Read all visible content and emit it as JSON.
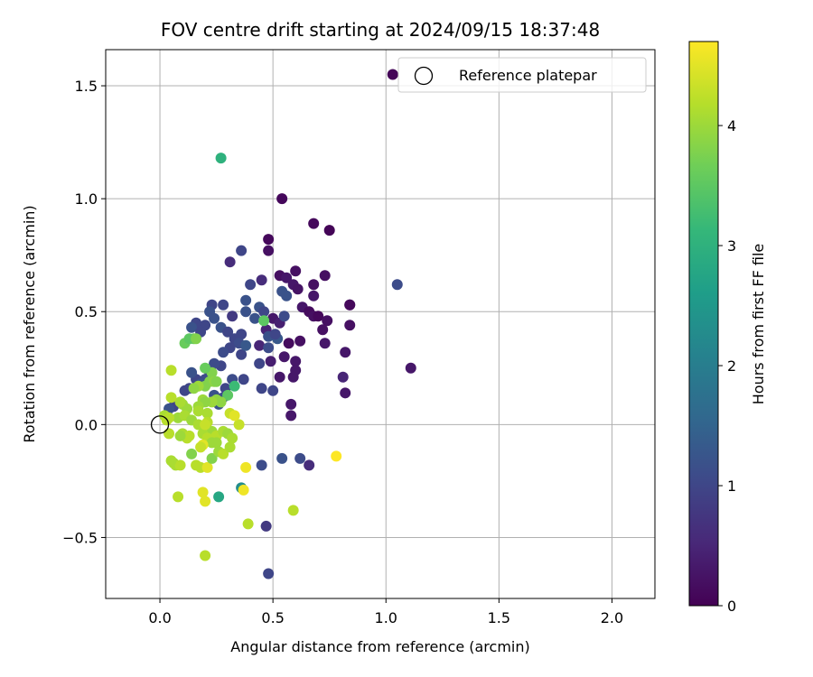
{
  "chart_data": {
    "type": "scatter",
    "title": "FOV centre drift starting at 2024/09/15 18:37:48",
    "xlabel": "Angular distance from reference (arcmin)",
    "ylabel": "Rotation from reference (arcmin)",
    "xlim": [
      -0.24,
      2.19
    ],
    "ylim": [
      -0.77,
      1.66
    ],
    "xticks": [
      0.0,
      0.5,
      1.0,
      1.5,
      2.0
    ],
    "xtick_labels": [
      "0.0",
      "0.5",
      "1.0",
      "1.5",
      "2.0"
    ],
    "yticks": [
      -0.5,
      0.0,
      0.5,
      1.0,
      1.5
    ],
    "ytick_labels": [
      "−0.5",
      "0.0",
      "0.5",
      "1.0",
      "1.5"
    ],
    "grid": true,
    "legend": {
      "position": "top-right",
      "entries": [
        {
          "label": "Reference platepar",
          "marker": "open-circle"
        }
      ]
    },
    "reference_point": {
      "x": 0.0,
      "y": 0.0
    },
    "colorbar": {
      "label": "Hours from first FF file",
      "colormap": "viridis",
      "range": [
        0,
        4.7
      ],
      "ticks": [
        0,
        1,
        2,
        3,
        4
      ],
      "tick_labels": [
        "0",
        "1",
        "2",
        "3",
        "4"
      ]
    },
    "series": [
      {
        "points": [
          [
            1.03,
            1.55,
            0.05
          ],
          [
            0.54,
            1.0,
            0.1
          ],
          [
            0.68,
            0.89,
            0.1
          ],
          [
            0.75,
            0.86,
            0.05
          ],
          [
            0.48,
            0.82,
            0.1
          ],
          [
            0.48,
            0.77,
            0.2
          ],
          [
            0.53,
            0.66,
            0.2
          ],
          [
            0.6,
            0.68,
            0.2
          ],
          [
            0.56,
            0.65,
            0.3
          ],
          [
            0.59,
            0.62,
            0.3
          ],
          [
            0.61,
            0.6,
            0.25
          ],
          [
            0.68,
            0.62,
            0.2
          ],
          [
            0.68,
            0.57,
            0.3
          ],
          [
            0.73,
            0.66,
            0.2
          ],
          [
            0.63,
            0.52,
            0.3
          ],
          [
            0.66,
            0.5,
            0.15
          ],
          [
            0.68,
            0.48,
            0.2
          ],
          [
            0.7,
            0.48,
            0.1
          ],
          [
            0.74,
            0.46,
            0.2
          ],
          [
            0.72,
            0.42,
            0.2
          ],
          [
            0.84,
            0.53,
            0.2
          ],
          [
            0.84,
            0.53,
            0.1
          ],
          [
            0.84,
            0.44,
            0.2
          ],
          [
            0.62,
            0.37,
            0.2
          ],
          [
            0.57,
            0.36,
            0.15
          ],
          [
            0.73,
            0.36,
            0.3
          ],
          [
            0.55,
            0.3,
            0.3
          ],
          [
            0.6,
            0.28,
            0.3
          ],
          [
            0.6,
            0.24,
            0.3
          ],
          [
            0.53,
            0.21,
            0.3
          ],
          [
            0.59,
            0.21,
            0.3
          ],
          [
            0.82,
            0.32,
            0.3
          ],
          [
            0.81,
            0.21,
            0.5
          ],
          [
            0.82,
            0.14,
            0.3
          ],
          [
            0.58,
            0.09,
            0.3
          ],
          [
            0.58,
            0.04,
            0.3
          ],
          [
            0.49,
            0.28,
            0.4
          ],
          [
            1.11,
            0.25,
            0.3
          ],
          [
            0.5,
            0.47,
            0.3
          ],
          [
            0.53,
            0.45,
            0.4
          ],
          [
            0.47,
            0.42,
            0.5
          ],
          [
            0.44,
            0.35,
            0.5
          ],
          [
            0.45,
            0.64,
            0.6
          ],
          [
            0.36,
            0.77,
            1.0
          ],
          [
            0.31,
            0.72,
            0.6
          ],
          [
            0.4,
            0.62,
            1.0
          ],
          [
            0.54,
            0.59,
            1.2
          ],
          [
            0.56,
            0.57,
            1.2
          ],
          [
            1.05,
            0.62,
            1.1
          ],
          [
            0.55,
            0.48,
            1.1
          ],
          [
            0.48,
            0.39,
            1.2
          ],
          [
            0.48,
            0.34,
            1.1
          ],
          [
            0.52,
            0.38,
            1.3
          ],
          [
            0.51,
            0.4,
            1.0
          ],
          [
            0.44,
            0.52,
            1.2
          ],
          [
            0.46,
            0.5,
            1.0
          ],
          [
            0.38,
            0.55,
            1.2
          ],
          [
            0.38,
            0.5,
            1.2
          ],
          [
            0.42,
            0.47,
            1.2
          ],
          [
            0.36,
            0.4,
            1.0
          ],
          [
            0.32,
            0.48,
            0.8
          ],
          [
            0.28,
            0.53,
            1.0
          ],
          [
            0.23,
            0.53,
            1.0
          ],
          [
            0.22,
            0.5,
            1.2
          ],
          [
            0.24,
            0.47,
            1.2
          ],
          [
            0.27,
            0.43,
            1.2
          ],
          [
            0.2,
            0.44,
            1.0
          ],
          [
            0.16,
            0.45,
            1.0
          ],
          [
            0.14,
            0.43,
            1.2
          ],
          [
            0.18,
            0.41,
            1.0
          ],
          [
            0.3,
            0.41,
            1.0
          ],
          [
            0.33,
            0.38,
            1.0
          ],
          [
            0.35,
            0.36,
            1.1
          ],
          [
            0.31,
            0.34,
            1.0
          ],
          [
            0.28,
            0.32,
            1.1
          ],
          [
            0.36,
            0.31,
            1.0
          ],
          [
            0.38,
            0.35,
            1.3
          ],
          [
            0.44,
            0.27,
            1.0
          ],
          [
            0.5,
            0.15,
            1.0
          ],
          [
            0.45,
            0.16,
            1.0
          ],
          [
            0.37,
            0.2,
            1.0
          ],
          [
            0.32,
            0.2,
            1.1
          ],
          [
            0.29,
            0.16,
            1.0
          ],
          [
            0.27,
            0.26,
            1.0
          ],
          [
            0.24,
            0.27,
            1.1
          ],
          [
            0.22,
            0.23,
            1.0
          ],
          [
            0.2,
            0.2,
            1.1
          ],
          [
            0.16,
            0.2,
            1.0
          ],
          [
            0.14,
            0.23,
            1.2
          ],
          [
            0.18,
            0.18,
            1.2
          ],
          [
            0.13,
            0.16,
            1.0
          ],
          [
            0.11,
            0.15,
            1.0
          ],
          [
            0.24,
            0.13,
            1.2
          ],
          [
            0.28,
            0.12,
            1.1
          ],
          [
            0.26,
            0.09,
            1.2
          ],
          [
            0.06,
            0.08,
            1.0
          ],
          [
            0.04,
            0.07,
            1.2
          ],
          [
            0.54,
            -0.15,
            1.2
          ],
          [
            0.62,
            -0.15,
            1.1
          ],
          [
            0.45,
            -0.18,
            1.1
          ],
          [
            0.66,
            -0.18,
            0.6
          ],
          [
            0.47,
            -0.45,
            0.8
          ],
          [
            0.48,
            -0.66,
            1.0
          ],
          [
            0.36,
            -0.28,
            2.3
          ],
          [
            0.26,
            -0.32,
            2.8
          ],
          [
            0.27,
            1.18,
            3.0
          ],
          [
            0.46,
            0.46,
            3.5
          ],
          [
            0.11,
            0.36,
            3.6
          ],
          [
            0.15,
            0.38,
            3.6
          ],
          [
            0.13,
            0.38,
            3.5
          ],
          [
            0.16,
            0.38,
            3.8
          ],
          [
            0.33,
            0.17,
            3.2
          ],
          [
            0.3,
            0.13,
            3.5
          ],
          [
            0.23,
            0.23,
            3.8
          ],
          [
            0.2,
            0.25,
            3.6
          ],
          [
            0.22,
            0.19,
            3.8
          ],
          [
            0.24,
            0.19,
            3.9
          ],
          [
            0.25,
            0.19,
            3.8
          ],
          [
            0.2,
            0.17,
            3.8
          ],
          [
            0.17,
            0.17,
            4.0
          ],
          [
            0.15,
            0.16,
            3.9
          ],
          [
            0.25,
            0.11,
            3.9
          ],
          [
            0.27,
            0.1,
            3.9
          ],
          [
            0.23,
            0.1,
            4.0
          ],
          [
            0.19,
            0.11,
            4.0
          ],
          [
            0.2,
            0.1,
            3.9
          ],
          [
            0.17,
            0.08,
            4.0
          ],
          [
            0.17,
            0.06,
            4.1
          ],
          [
            0.21,
            0.05,
            4.1
          ],
          [
            0.12,
            0.07,
            4.0
          ],
          [
            0.1,
            0.09,
            4.0
          ],
          [
            0.09,
            0.1,
            4.1
          ],
          [
            0.05,
            0.12,
            4.2
          ],
          [
            0.05,
            0.24,
            4.2
          ],
          [
            0.02,
            0.04,
            4.1
          ],
          [
            0.03,
            0.02,
            4.2
          ],
          [
            0.08,
            0.03,
            4.0
          ],
          [
            0.11,
            0.04,
            4.1
          ],
          [
            0.14,
            0.02,
            4.0
          ],
          [
            0.17,
            0.0,
            4.1
          ],
          [
            0.21,
            0.01,
            4.2
          ],
          [
            0.23,
            -0.03,
            4.0
          ],
          [
            0.25,
            -0.05,
            4.2
          ],
          [
            0.28,
            -0.03,
            4.1
          ],
          [
            0.3,
            -0.04,
            4.0
          ],
          [
            0.32,
            -0.06,
            4.1
          ],
          [
            0.35,
            0.0,
            4.3
          ],
          [
            0.31,
            0.05,
            4.3
          ],
          [
            0.33,
            0.04,
            4.5
          ],
          [
            0.04,
            -0.04,
            4.2
          ],
          [
            0.1,
            -0.04,
            4.1
          ],
          [
            0.12,
            -0.06,
            4.2
          ],
          [
            0.13,
            -0.05,
            4.2
          ],
          [
            0.19,
            -0.04,
            4.1
          ],
          [
            0.21,
            -0.06,
            4.2
          ],
          [
            0.23,
            -0.08,
            4.0
          ],
          [
            0.19,
            -0.09,
            4.5
          ],
          [
            0.18,
            -0.1,
            4.3
          ],
          [
            0.25,
            -0.08,
            4.0
          ],
          [
            0.06,
            -0.17,
            4.0
          ],
          [
            0.07,
            -0.18,
            4.1
          ],
          [
            0.09,
            -0.18,
            4.2
          ],
          [
            0.14,
            -0.13,
            3.8
          ],
          [
            0.16,
            -0.18,
            4.2
          ],
          [
            0.18,
            -0.19,
            4.2
          ],
          [
            0.21,
            -0.19,
            4.5
          ],
          [
            0.23,
            -0.15,
            3.8
          ],
          [
            0.26,
            -0.12,
            4.0
          ],
          [
            0.28,
            -0.13,
            4.2
          ],
          [
            0.31,
            -0.1,
            4.1
          ],
          [
            0.38,
            -0.19,
            4.6
          ],
          [
            0.37,
            -0.29,
            4.6
          ],
          [
            0.19,
            -0.3,
            4.5
          ],
          [
            0.2,
            -0.34,
            4.5
          ],
          [
            0.08,
            -0.32,
            4.2
          ],
          [
            0.39,
            -0.44,
            4.2
          ],
          [
            0.59,
            -0.38,
            4.2
          ],
          [
            0.2,
            -0.58,
            4.2
          ],
          [
            0.78,
            -0.14,
            4.7
          ],
          [
            0.05,
            -0.16,
            4.1
          ],
          [
            0.09,
            -0.05,
            4.0
          ],
          [
            0.04,
            0.03,
            4.2
          ],
          [
            0.2,
            0.0,
            4.3
          ]
        ]
      }
    ]
  }
}
